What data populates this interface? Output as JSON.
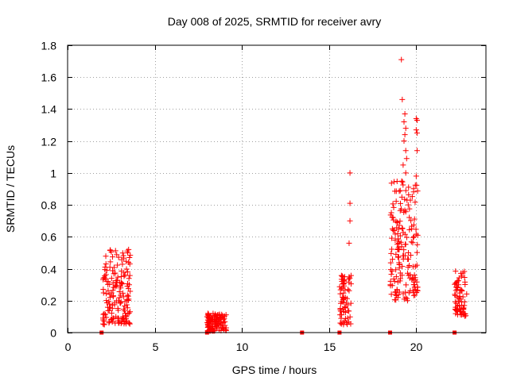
{
  "chart_data": {
    "type": "scatter",
    "title": "Day 008 of 2025, SRMTID for receiver avry",
    "xlabel": "GPS time / hours",
    "ylabel": "SRMTID / TECUs",
    "xlim": [
      0,
      24
    ],
    "ylim": [
      0,
      1.8
    ],
    "xticks": [
      0,
      5,
      10,
      15,
      20
    ],
    "xtick_labels": [
      "0",
      "5",
      "10",
      "15",
      "20"
    ],
    "yticks": [
      0,
      0.2,
      0.4,
      0.6,
      0.8,
      1,
      1.2,
      1.4,
      1.6,
      1.8
    ],
    "ytick_labels": [
      "0",
      "0.2",
      "0.4",
      "0.6",
      "0.8",
      "1",
      "1.2",
      "1.4",
      "1.6",
      "1.8"
    ],
    "grid": true,
    "marker": "+",
    "marker_color": "#ff0000",
    "zero_markers": {
      "marker": "square",
      "x": [
        1.95,
        8.0,
        13.45,
        15.6,
        18.5,
        22.2
      ]
    },
    "clusters": [
      {
        "x_range": [
          2.0,
          3.6
        ],
        "y_range": [
          0.05,
          0.52
        ],
        "count": 160,
        "seed": 11
      },
      {
        "x_range": [
          8.0,
          9.1
        ],
        "y_range": [
          0.01,
          0.12
        ],
        "count": 120,
        "seed": 23
      },
      {
        "x_range": [
          15.6,
          16.3
        ],
        "y_range": [
          0.05,
          0.36
        ],
        "count": 70,
        "seed": 37
      },
      {
        "x_range": [
          18.5,
          20.1
        ],
        "y_range": [
          0.2,
          0.95
        ],
        "count": 170,
        "seed": 41
      },
      {
        "x_range": [
          22.2,
          22.9
        ],
        "y_range": [
          0.1,
          0.4
        ],
        "count": 70,
        "seed": 53
      }
    ],
    "points": [
      {
        "x": 3.5,
        "y": 0.52
      },
      {
        "x": 3.45,
        "y": 0.5
      },
      {
        "x": 3.55,
        "y": 0.47
      },
      {
        "x": 3.5,
        "y": 0.44
      },
      {
        "x": 2.2,
        "y": 0.43
      },
      {
        "x": 2.15,
        "y": 0.41
      },
      {
        "x": 2.25,
        "y": 0.39
      },
      {
        "x": 8.05,
        "y": 0.12
      },
      {
        "x": 16.2,
        "y": 1.0
      },
      {
        "x": 16.2,
        "y": 0.81
      },
      {
        "x": 16.2,
        "y": 0.7
      },
      {
        "x": 16.15,
        "y": 0.56
      },
      {
        "x": 19.15,
        "y": 1.71
      },
      {
        "x": 19.2,
        "y": 1.46
      },
      {
        "x": 19.35,
        "y": 1.37
      },
      {
        "x": 19.3,
        "y": 1.32
      },
      {
        "x": 19.4,
        "y": 1.28
      },
      {
        "x": 19.35,
        "y": 1.24
      },
      {
        "x": 19.3,
        "y": 1.2
      },
      {
        "x": 19.4,
        "y": 1.14
      },
      {
        "x": 19.45,
        "y": 1.09
      },
      {
        "x": 19.25,
        "y": 1.05
      },
      {
        "x": 19.4,
        "y": 1.0
      },
      {
        "x": 20.0,
        "y": 1.34
      },
      {
        "x": 20.05,
        "y": 1.33
      },
      {
        "x": 20.0,
        "y": 1.27
      },
      {
        "x": 20.05,
        "y": 1.25
      },
      {
        "x": 20.05,
        "y": 1.14
      },
      {
        "x": 20.0,
        "y": 0.98
      },
      {
        "x": 19.9,
        "y": 0.36
      },
      {
        "x": 19.95,
        "y": 0.33
      },
      {
        "x": 19.9,
        "y": 0.3
      },
      {
        "x": 19.95,
        "y": 0.27
      },
      {
        "x": 18.9,
        "y": 0.27
      },
      {
        "x": 18.95,
        "y": 0.22
      },
      {
        "x": 19.55,
        "y": 0.5
      },
      {
        "x": 19.5,
        "y": 0.46
      },
      {
        "x": 19.6,
        "y": 0.42
      }
    ]
  }
}
